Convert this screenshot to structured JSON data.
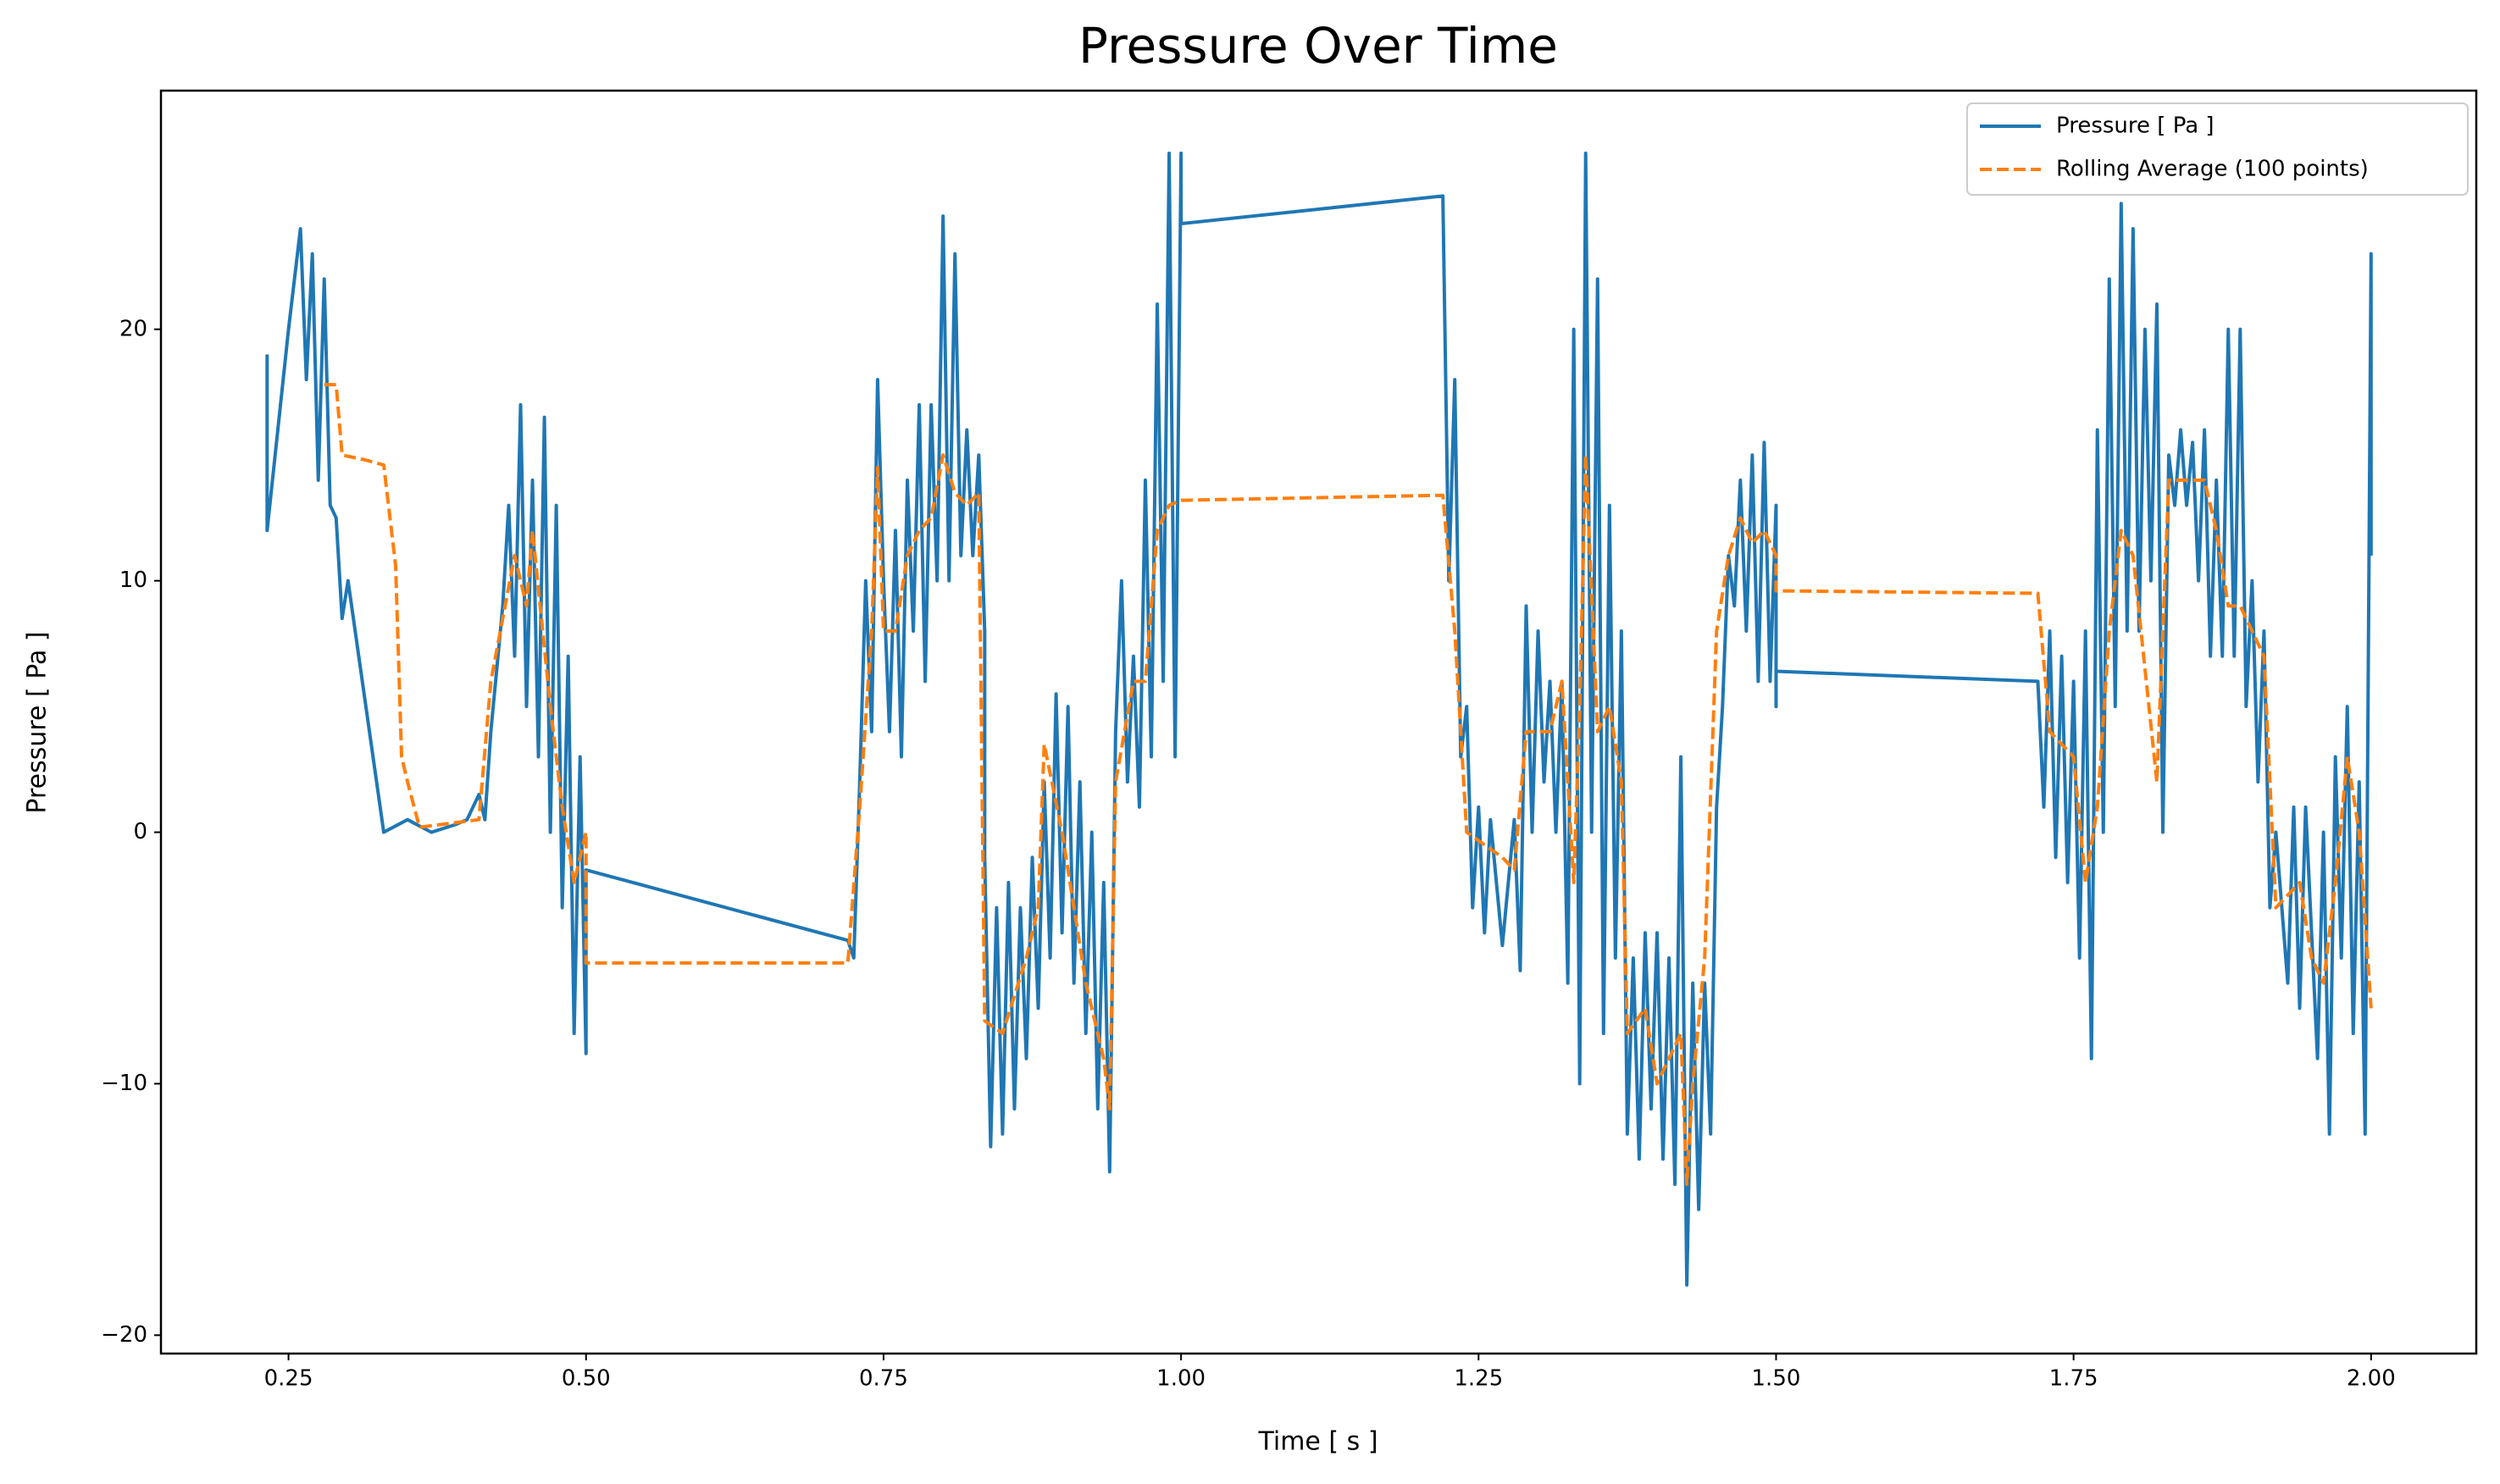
{
  "chart_data": {
    "type": "line",
    "title": "Pressure Over Time",
    "x_label": "Time [ s ]",
    "y_label": "Pressure [ Pa ]",
    "xlim": [
      0.1428,
      2.0884
    ],
    "ylim": [
      -20.73,
      29.49
    ],
    "xticks": [
      0.25,
      {
        "value": 0.5,
        "label": "0.50"
      },
      0.75,
      {
        "value": 1,
        "label": "1.00"
      },
      1.25,
      {
        "value": 1.5,
        "label": "1.50"
      },
      1.75,
      {
        "value": 2,
        "label": "2.00"
      }
    ],
    "yticks": [
      {
        "value": -20,
        "label": "−20"
      },
      {
        "value": -10,
        "label": "−10"
      },
      0,
      10,
      20
    ],
    "grid": false,
    "legend": "upper right",
    "series": [
      {
        "name": "Pressure [ Pa ]",
        "color": "#1f77b4",
        "style": "solid",
        "x": [
          0.232,
          0.232,
          0.25,
          0.26,
          0.265,
          0.27,
          0.275,
          0.28,
          0.285,
          0.29,
          0.295,
          0.3,
          0.33,
          0.35,
          0.37,
          0.39,
          0.4,
          0.41,
          0.415,
          0.42,
          0.43,
          0.435,
          0.44,
          0.445,
          0.45,
          0.455,
          0.46,
          0.465,
          0.47,
          0.475,
          0.48,
          0.485,
          0.49,
          0.495,
          0.5,
          0.5,
          0.72,
          0.725,
          0.73,
          0.735,
          0.74,
          0.745,
          0.75,
          0.755,
          0.76,
          0.765,
          0.77,
          0.775,
          0.78,
          0.785,
          0.79,
          0.795,
          0.8,
          0.805,
          0.81,
          0.815,
          0.82,
          0.825,
          0.83,
          0.835,
          0.835,
          0.84,
          0.845,
          0.85,
          0.855,
          0.86,
          0.865,
          0.87,
          0.875,
          0.88,
          0.885,
          0.89,
          0.895,
          0.9,
          0.905,
          0.91,
          0.915,
          0.92,
          0.925,
          0.93,
          0.935,
          0.94,
          0.945,
          0.95,
          0.955,
          0.96,
          0.965,
          0.97,
          0.975,
          0.98,
          0.985,
          0.99,
          0.995,
          1.0,
          1.0,
          1.22,
          1.225,
          1.23,
          1.235,
          1.24,
          1.245,
          1.25,
          1.255,
          1.26,
          1.27,
          1.28,
          1.285,
          1.29,
          1.295,
          1.3,
          1.305,
          1.31,
          1.315,
          1.32,
          1.325,
          1.33,
          1.335,
          1.34,
          1.345,
          1.35,
          1.355,
          1.36,
          1.365,
          1.37,
          1.375,
          1.38,
          1.385,
          1.39,
          1.395,
          1.4,
          1.405,
          1.41,
          1.415,
          1.42,
          1.425,
          1.43,
          1.435,
          1.44,
          1.445,
          1.45,
          1.455,
          1.46,
          1.465,
          1.47,
          1.475,
          1.48,
          1.485,
          1.49,
          1.495,
          1.5,
          1.5,
          1.5,
          1.72,
          1.725,
          1.73,
          1.735,
          1.74,
          1.745,
          1.75,
          1.755,
          1.76,
          1.765,
          1.77,
          1.775,
          1.78,
          1.785,
          1.79,
          1.795,
          1.8,
          1.805,
          1.81,
          1.815,
          1.82,
          1.825,
          1.83,
          1.835,
          1.84,
          1.845,
          1.85,
          1.855,
          1.86,
          1.865,
          1.87,
          1.875,
          1.88,
          1.885,
          1.89,
          1.895,
          1.9,
          1.905,
          1.91,
          1.915,
          1.92,
          1.925,
          1.93,
          1.935,
          1.94,
          1.945,
          1.95,
          1.955,
          1.96,
          1.965,
          1.97,
          1.975,
          1.98,
          1.985,
          1.99,
          1.995,
          2.0,
          2.0
        ],
        "values": [
          19,
          12,
          20,
          24,
          18,
          23,
          14,
          22,
          13,
          12.5,
          8.5,
          10,
          0,
          0.5,
          0,
          0.3,
          0.5,
          1.5,
          0.5,
          4,
          9,
          13,
          7,
          17,
          5,
          14,
          3,
          16.5,
          0,
          13,
          -3,
          7,
          -8,
          3,
          -8.8,
          -1.5,
          -4.3,
          -5,
          2,
          10,
          4,
          18,
          10,
          4,
          12,
          3,
          14,
          8,
          17,
          6,
          17,
          10,
          24.5,
          10,
          23,
          11,
          16,
          11,
          15,
          8,
          -1,
          -12.5,
          -3,
          -12,
          -2,
          -11,
          -3,
          -9,
          -1,
          -7,
          2,
          -5,
          5.5,
          -4,
          5,
          -6,
          2,
          -8,
          0,
          -11,
          -2,
          -13.5,
          4,
          10,
          2,
          7,
          1,
          14,
          3,
          21,
          6,
          27,
          3,
          27,
          24.2,
          25.3,
          10,
          18,
          3,
          5,
          -3,
          1,
          -4,
          0.5,
          -4.5,
          0.5,
          -5.5,
          9,
          0,
          8,
          2,
          6,
          0,
          6,
          -6,
          20,
          -10,
          27,
          0,
          22,
          -8,
          13,
          -5,
          8,
          -12,
          -5,
          -13,
          -4,
          -11,
          -4,
          -13,
          -5,
          -14,
          3,
          -18,
          -6,
          -15,
          -6,
          -12,
          1,
          5,
          11,
          9,
          14,
          8,
          15,
          6,
          15.5,
          6,
          13,
          5,
          6.4,
          6.0,
          1,
          8,
          -1,
          7,
          -2,
          6,
          -5,
          8,
          -9,
          16,
          0,
          22,
          5,
          25,
          8,
          24,
          8,
          20,
          10,
          21,
          0,
          15,
          13,
          16,
          13,
          15.5,
          10,
          16,
          7,
          14,
          7,
          20,
          7,
          20,
          5,
          10,
          2,
          8,
          -3,
          0,
          -3,
          -6,
          1,
          -7,
          1,
          -4,
          -9,
          0,
          -12,
          3,
          -5,
          5,
          -8,
          2,
          -12,
          23,
          11
        ]
      },
      {
        "name": "Rolling Average (100 points)",
        "color": "#ff7f0e",
        "style": "dashed",
        "x": [
          0.28,
          0.29,
          0.295,
          0.315,
          0.33,
          0.34,
          0.345,
          0.35,
          0.36,
          0.41,
          0.42,
          0.44,
          0.45,
          0.455,
          0.47,
          0.48,
          0.49,
          0.5,
          0.5,
          0.72,
          0.73,
          0.74,
          0.745,
          0.75,
          0.76,
          0.77,
          0.78,
          0.79,
          0.8,
          0.81,
          0.82,
          0.83,
          0.835,
          0.85,
          0.87,
          0.88,
          0.885,
          0.9,
          0.92,
          0.935,
          0.94,
          0.945,
          0.96,
          0.97,
          0.98,
          0.99,
          1.0,
          1.22,
          1.23,
          1.24,
          1.27,
          1.28,
          1.29,
          1.31,
          1.32,
          1.33,
          1.335,
          1.34,
          1.35,
          1.36,
          1.37,
          1.375,
          1.39,
          1.4,
          1.42,
          1.425,
          1.43,
          1.44,
          1.45,
          1.46,
          1.47,
          1.48,
          1.49,
          1.5,
          1.5,
          1.72,
          1.73,
          1.75,
          1.76,
          1.77,
          1.78,
          1.79,
          1.8,
          1.82,
          1.83,
          1.86,
          1.87,
          1.88,
          1.89,
          1.9,
          1.91,
          1.92,
          1.94,
          1.95,
          1.96,
          1.97,
          1.98,
          1.99,
          2.0
        ],
        "values": [
          17.8,
          17.8,
          15,
          14.8,
          14.6,
          10.6,
          3,
          2,
          0.2,
          0.5,
          6,
          11,
          9,
          12,
          5,
          1,
          -2,
          0,
          -5.2,
          -5.2,
          1,
          8,
          14.5,
          8,
          8,
          11,
          12,
          12.5,
          15,
          13.5,
          13,
          13.5,
          -7.5,
          -8,
          -5,
          -3,
          3.5,
          0,
          -6,
          -9,
          -11,
          2,
          6,
          6,
          12,
          13,
          13.2,
          13.4,
          8,
          0,
          -1,
          -1.5,
          4,
          4,
          6,
          -2,
          5,
          15,
          4,
          5,
          2,
          -8,
          -7,
          -10,
          -8,
          -14,
          -10,
          -5,
          8,
          11,
          12.5,
          11.5,
          12,
          11,
          9.6,
          9.5,
          4,
          3,
          -2,
          1,
          8,
          12,
          11,
          2,
          14,
          14,
          12,
          9,
          9,
          8,
          7,
          -3,
          -2,
          -5,
          -6,
          -2,
          3,
          0,
          -7
        ]
      }
    ]
  }
}
